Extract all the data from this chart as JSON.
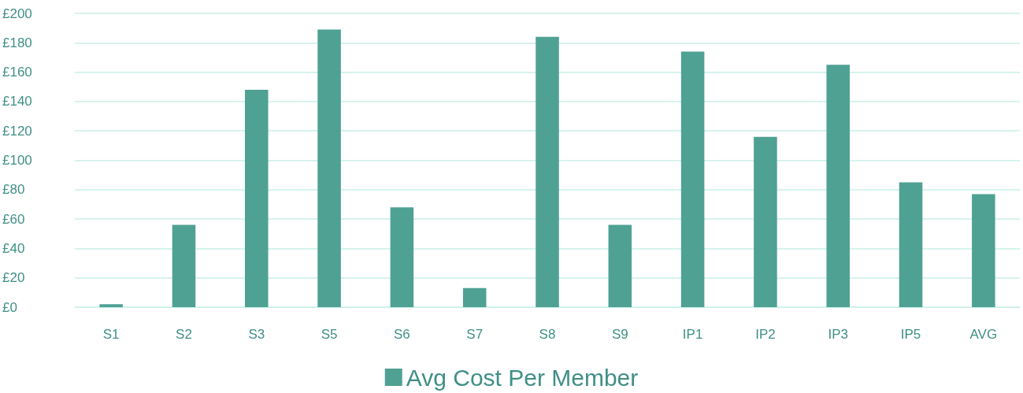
{
  "chart_data": {
    "type": "bar",
    "categories": [
      "S1",
      "S2",
      "S3",
      "S5",
      "S6",
      "S7",
      "S8",
      "S9",
      "IP1",
      "IP2",
      "IP3",
      "IP5",
      "AVG"
    ],
    "series": [
      {
        "name": "Avg Cost Per Member",
        "color": "#4fa194",
        "values": [
          2,
          56,
          148,
          189,
          68,
          13,
          184,
          56,
          174,
          116,
          165,
          85,
          77
        ]
      }
    ],
    "ylim": [
      0,
      200
    ],
    "yticks": [
      {
        "value": 0,
        "label": "£0"
      },
      {
        "value": 20,
        "label": "£20"
      },
      {
        "value": 40,
        "label": "£40"
      },
      {
        "value": 60,
        "label": "£60"
      },
      {
        "value": 80,
        "label": "£80"
      },
      {
        "value": 100,
        "label": "£100"
      },
      {
        "value": 120,
        "label": "£120"
      },
      {
        "value": 140,
        "label": "£140"
      },
      {
        "value": 160,
        "label": "£160"
      },
      {
        "value": 180,
        "label": "£180"
      },
      {
        "value": 200,
        "label": "£200"
      }
    ],
    "grid": "y",
    "legend": "bottom"
  }
}
